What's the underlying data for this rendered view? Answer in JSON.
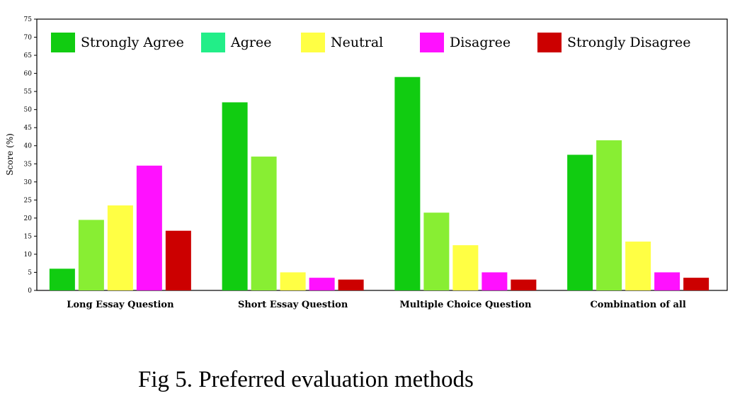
{
  "caption": "Fig 5. Preferred evaluation methods",
  "chart_data": {
    "type": "bar",
    "title": "",
    "xlabel": "",
    "ylabel": "Score (%)",
    "ylim": [
      0,
      75
    ],
    "yticks": [
      0,
      5,
      10,
      15,
      20,
      25,
      30,
      35,
      40,
      45,
      50,
      55,
      60,
      65,
      70,
      75
    ],
    "grid": false,
    "legend_position": "top",
    "categories": [
      "Long Essay Question",
      "Short Essay Question",
      "Multiple Choice Question",
      "Combination of all"
    ],
    "series": [
      {
        "name": "Strongly Agree",
        "color": "#11cc11",
        "values": [
          6,
          52,
          59,
          37.5
        ]
      },
      {
        "name": "Agree",
        "color": "#88ee33",
        "legend_color": "#22ee88",
        "values": [
          19.5,
          37,
          21.5,
          41.5
        ]
      },
      {
        "name": "Neutral",
        "color": "#ffff44",
        "values": [
          23.5,
          5,
          12.5,
          13.5
        ]
      },
      {
        "name": "Disagree",
        "color": "#ff11ff",
        "values": [
          34.5,
          3.5,
          5,
          5
        ]
      },
      {
        "name": "Strongly Disagree",
        "color": "#cc0000",
        "values": [
          16.5,
          3,
          3,
          3.5
        ]
      }
    ]
  }
}
